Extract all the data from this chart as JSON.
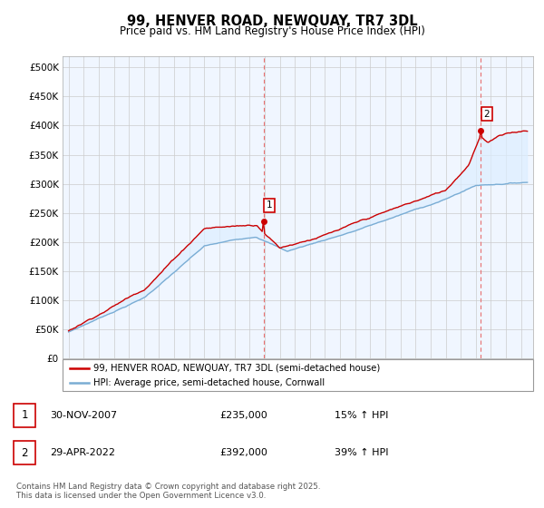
{
  "title": "99, HENVER ROAD, NEWQUAY, TR7 3DL",
  "subtitle": "Price paid vs. HM Land Registry's House Price Index (HPI)",
  "ylim": [
    0,
    520000
  ],
  "yticks": [
    0,
    50000,
    100000,
    150000,
    200000,
    250000,
    300000,
    350000,
    400000,
    450000,
    500000
  ],
  "ytick_labels": [
    "£0",
    "£50K",
    "£100K",
    "£150K",
    "£200K",
    "£250K",
    "£300K",
    "£350K",
    "£400K",
    "£450K",
    "£500K"
  ],
  "property_color": "#cc0000",
  "hpi_color": "#7aadd4",
  "fill_color": "#ddeeff",
  "vline_color": "#e87070",
  "marker_color": "#cc0000",
  "background_color": "#ffffff",
  "grid_color": "#cccccc",
  "sale1_date": 2007.92,
  "sale1_price": 235000,
  "sale2_date": 2022.33,
  "sale2_price": 392000,
  "legend_property": "99, HENVER ROAD, NEWQUAY, TR7 3DL (semi-detached house)",
  "legend_hpi": "HPI: Average price, semi-detached house, Cornwall",
  "footnote": "Contains HM Land Registry data © Crown copyright and database right 2025.\nThis data is licensed under the Open Government Licence v3.0.",
  "table_rows": [
    {
      "num": "1",
      "date": "30-NOV-2007",
      "price": "£235,000",
      "pct": "15% ↑ HPI"
    },
    {
      "num": "2",
      "date": "29-APR-2022",
      "price": "£392,000",
      "pct": "39% ↑ HPI"
    }
  ]
}
